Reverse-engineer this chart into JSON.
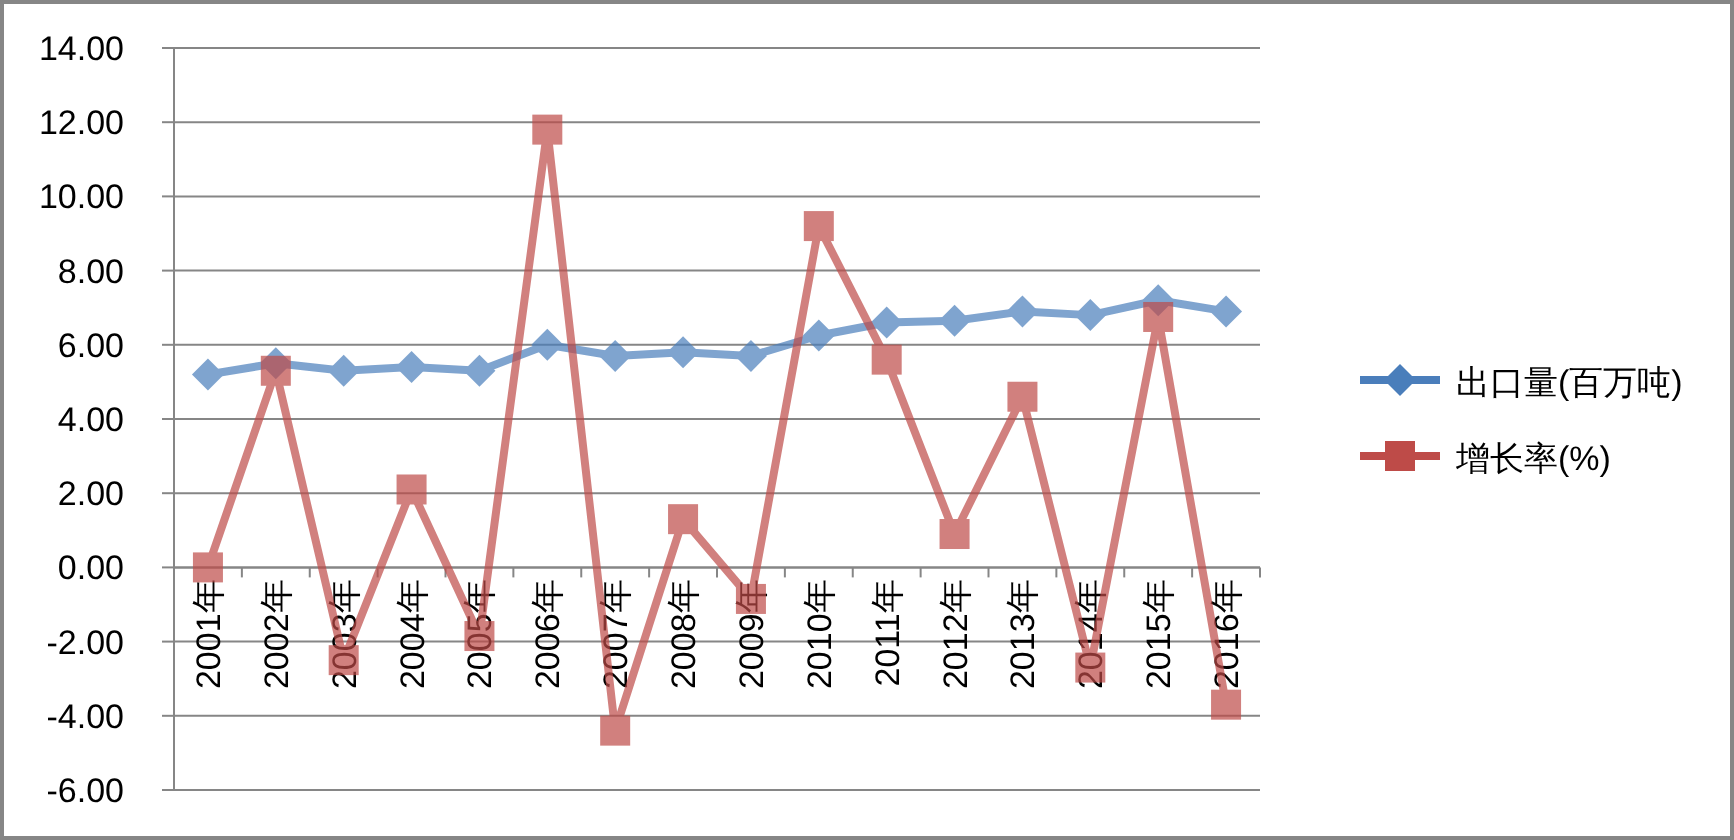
{
  "chart_data": {
    "type": "line",
    "categories": [
      "2001年",
      "2002年",
      "2003年",
      "2004年",
      "2005年",
      "2006年",
      "2007年",
      "2008年",
      "2009年",
      "2010年",
      "2011年",
      "2012年",
      "2013年",
      "2014年",
      "2015年",
      "2016年"
    ],
    "series": [
      {
        "name": "出口量(百万吨)",
        "color": "#4a7ebb",
        "marker": "diamond",
        "values": [
          5.2,
          5.5,
          5.3,
          5.4,
          5.3,
          6.0,
          5.7,
          5.8,
          5.7,
          6.25,
          6.6,
          6.65,
          6.9,
          6.8,
          7.2,
          6.9
        ]
      },
      {
        "name": "增长率(%)",
        "color": "#be4b48",
        "marker": "square",
        "values": [
          0.0,
          5.3,
          -2.5,
          2.1,
          -1.85,
          11.8,
          -4.4,
          1.3,
          -0.85,
          9.2,
          5.6,
          0.9,
          4.6,
          -2.7,
          6.75,
          -3.7
        ]
      }
    ],
    "ylim": [
      -6,
      14
    ],
    "yticks": [
      {
        "value": -6,
        "label": "-6.00"
      },
      {
        "value": -4,
        "label": "-4.00"
      },
      {
        "value": -2,
        "label": "-2.00"
      },
      {
        "value": 0,
        "label": "0.00"
      },
      {
        "value": 2,
        "label": "2.00"
      },
      {
        "value": 4,
        "label": "4.00"
      },
      {
        "value": 6,
        "label": "6.00"
      },
      {
        "value": 8,
        "label": "8.00"
      },
      {
        "value": 10,
        "label": "10.00"
      },
      {
        "value": 12,
        "label": "12.00"
      },
      {
        "value": 14,
        "label": "14.00"
      }
    ],
    "grid": "y",
    "legend": "right"
  }
}
